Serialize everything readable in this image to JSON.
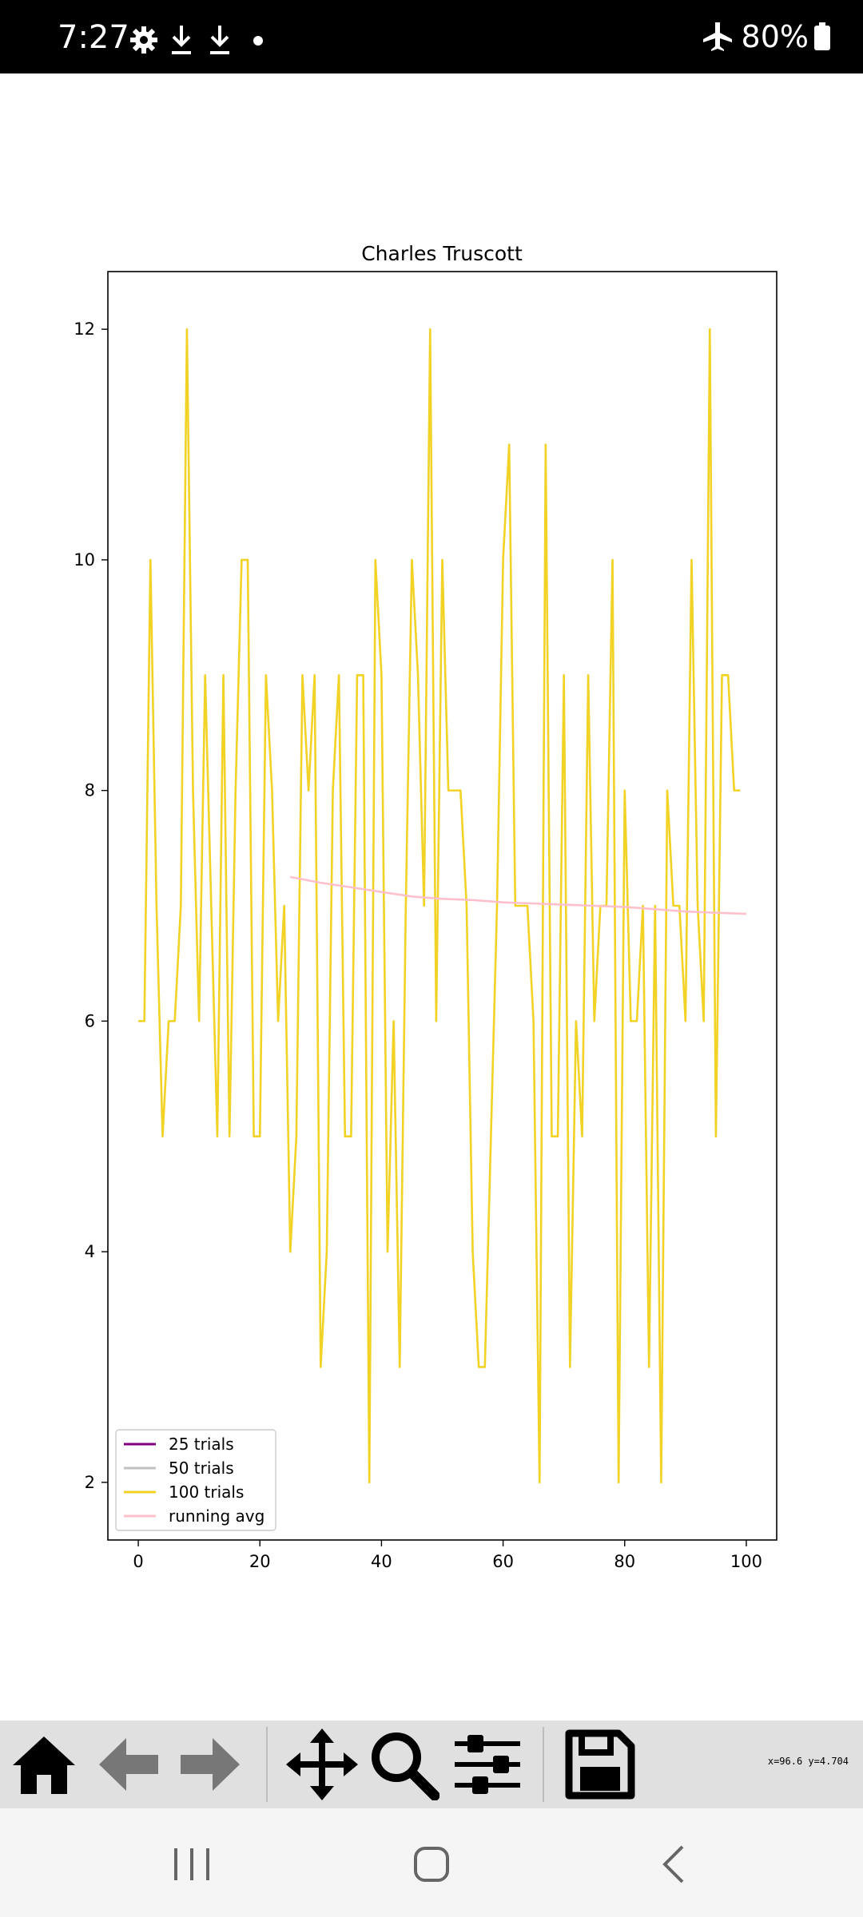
{
  "status_bar": {
    "time": "7:27",
    "battery": "80%",
    "icons": [
      "gear-icon",
      "download-icon",
      "download-icon",
      "dot-icon",
      "airplane-icon",
      "battery-icon"
    ]
  },
  "chart_data": {
    "type": "line",
    "title": "Charles Truscott",
    "xlim": [
      -5,
      105
    ],
    "ylim": [
      1.5,
      12.5
    ],
    "xticks": [
      0,
      20,
      40,
      60,
      80,
      100
    ],
    "yticks": [
      2,
      4,
      6,
      8,
      10,
      12
    ],
    "legend_position": "lower-left",
    "series": [
      {
        "name": "25 trials",
        "color": "#800080",
        "values": []
      },
      {
        "name": "50 trials",
        "color": "#c0c0c0",
        "values": []
      },
      {
        "name": "100 trials",
        "color": "#f2d224",
        "step": true,
        "x": [
          0,
          1,
          2,
          3,
          4,
          5,
          6,
          7,
          8,
          9,
          10,
          11,
          12,
          13,
          14,
          15,
          16,
          17,
          18,
          19,
          20,
          21,
          22,
          23,
          24,
          25,
          26,
          27,
          28,
          29,
          30,
          31,
          32,
          33,
          34,
          35,
          36,
          37,
          38,
          39,
          40,
          41,
          42,
          43,
          44,
          45,
          46,
          47,
          48,
          49,
          50,
          51,
          52,
          53,
          54,
          55,
          56,
          57,
          58,
          59,
          60,
          61,
          62,
          63,
          64,
          65,
          66,
          67,
          68,
          69,
          70,
          71,
          72,
          73,
          74,
          75,
          76,
          77,
          78,
          79,
          80,
          81,
          82,
          83,
          84,
          85,
          86,
          87,
          88,
          89,
          90,
          91,
          92,
          93,
          94,
          95,
          96,
          97,
          98,
          99
        ],
        "values": [
          6,
          6,
          10,
          7,
          5,
          6,
          6,
          7,
          12,
          8,
          6,
          9,
          7,
          5,
          9,
          5,
          8,
          10,
          10,
          5,
          5,
          9,
          8,
          6,
          7,
          4,
          5,
          9,
          8,
          9,
          3,
          4,
          8,
          9,
          5,
          5,
          9,
          9,
          2,
          10,
          9,
          4,
          6,
          3,
          7,
          10,
          9,
          7,
          12,
          6,
          10,
          8,
          8,
          8,
          7,
          4,
          3,
          3,
          5,
          7,
          10,
          11,
          7,
          7,
          7,
          6,
          2,
          11,
          5,
          5,
          9,
          3,
          6,
          5,
          9,
          6,
          7,
          7,
          10,
          2,
          8,
          6,
          6,
          7,
          3,
          7,
          2,
          8,
          7,
          7,
          6,
          10,
          7,
          6,
          12,
          5,
          9,
          9,
          8,
          8
        ]
      },
      {
        "name": "running avg",
        "color": "#ffc0cb",
        "x": [
          25,
          30,
          35,
          40,
          45,
          50,
          55,
          60,
          65,
          70,
          75,
          80,
          85,
          90,
          95,
          100
        ],
        "values": [
          7.25,
          7.2,
          7.16,
          7.12,
          7.08,
          7.06,
          7.05,
          7.03,
          7.02,
          7.01,
          7.0,
          6.99,
          6.97,
          6.95,
          6.94,
          6.93
        ]
      }
    ]
  },
  "toolbar": {
    "coordinates": "x=96.6 y=4.704",
    "tools": [
      "home-icon",
      "back-icon",
      "forward-icon",
      "pan-icon",
      "zoom-icon",
      "configure-icon",
      "save-icon"
    ]
  },
  "nav_bar": {
    "buttons": [
      "recent-apps-icon",
      "home-nav-icon",
      "back-nav-icon"
    ]
  }
}
